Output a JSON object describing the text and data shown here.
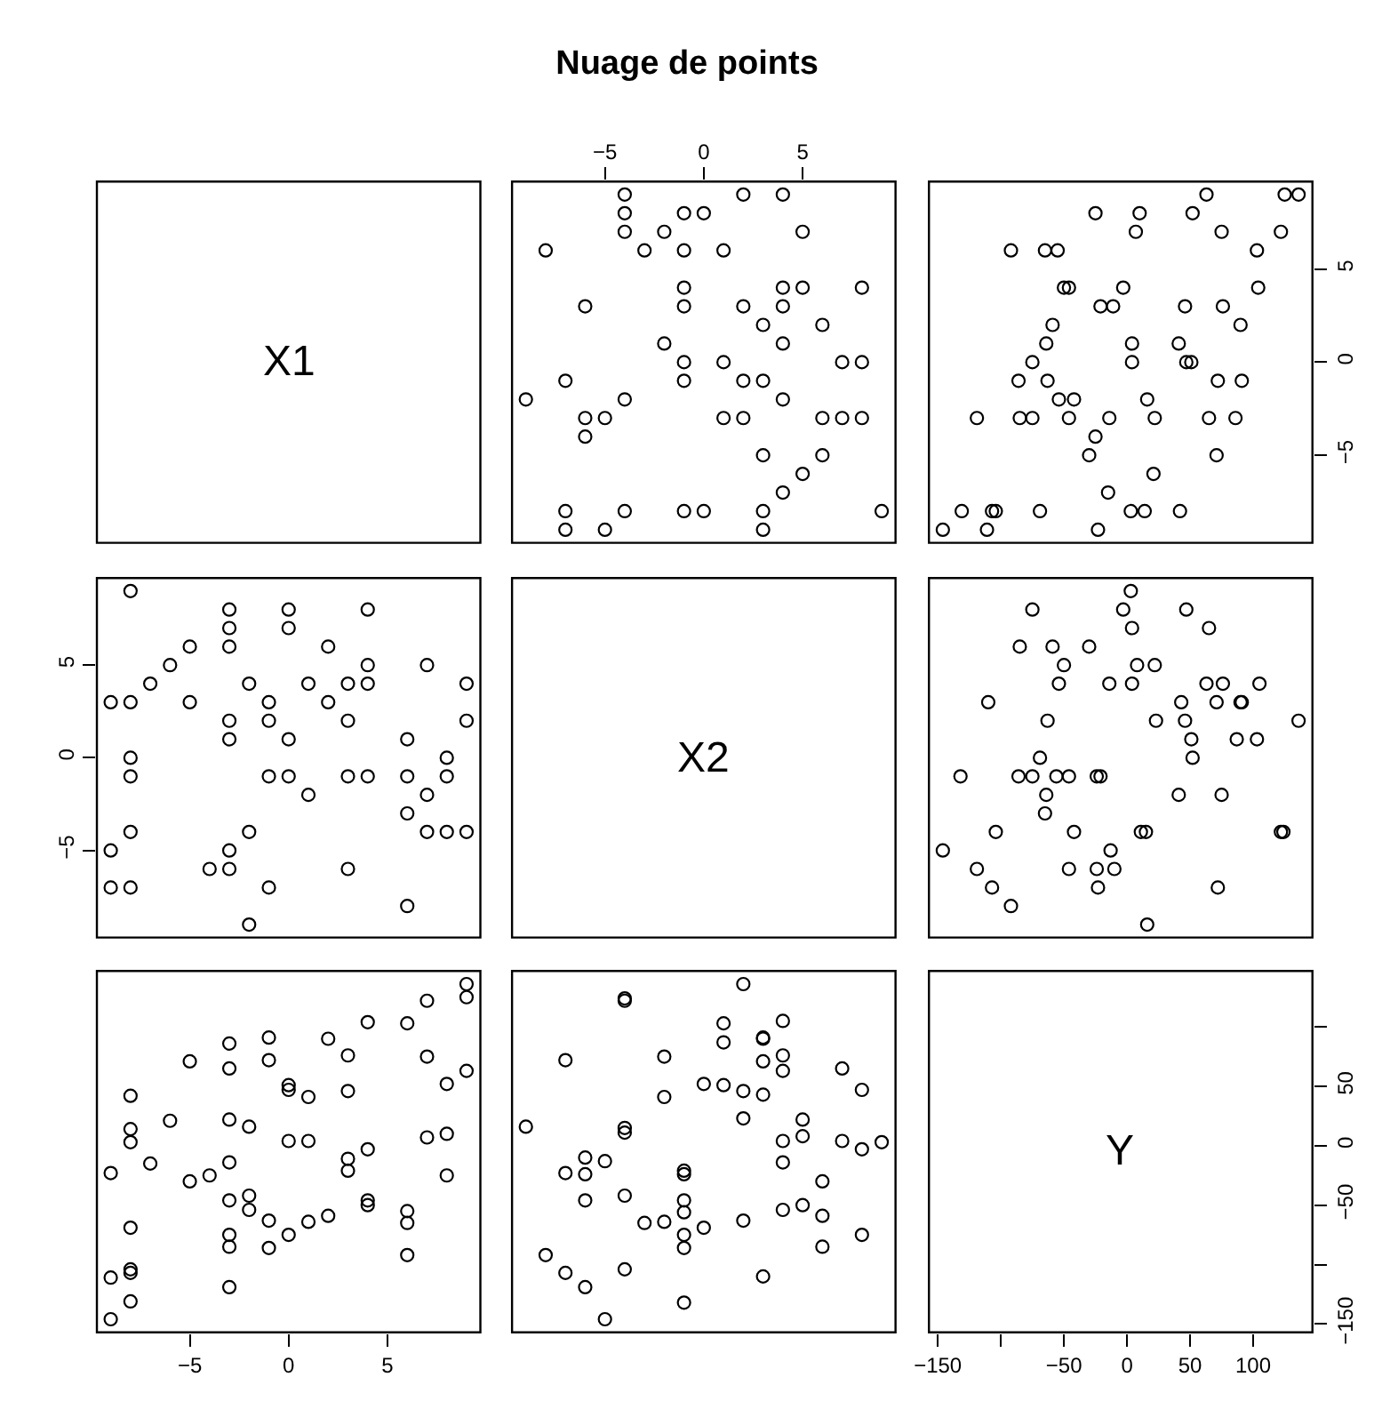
{
  "chart_data": [
    {
      "type": "other",
      "title": "Nuage de points",
      "annotations": [
        "X1"
      ]
    },
    {
      "type": "scatter",
      "marker": "circle",
      "color": "#000000",
      "tick_labels": "x",
      "x": [
        9,
        8,
        8,
        8,
        7,
        7,
        6,
        6,
        6,
        5,
        5,
        5,
        4,
        4,
        4,
        4,
        4,
        4,
        3,
        3,
        3,
        3,
        3,
        2,
        2,
        2,
        2,
        1,
        1,
        1,
        0,
        0,
        -1,
        -1,
        -1,
        -1,
        -1,
        -1,
        -1,
        -2,
        -2,
        -3,
        -4,
        -4,
        -4,
        -4,
        -4,
        -5,
        -5,
        -6,
        -6,
        -6,
        -7,
        -7,
        -7,
        -8,
        -9
      ],
      "values": [
        -8,
        -3,
        0,
        4,
        -3,
        0,
        -5,
        -3,
        2,
        -6,
        4,
        7,
        -7,
        -2,
        1,
        3,
        4,
        9,
        -9,
        -8,
        -5,
        -1,
        2,
        -3,
        -1,
        3,
        9,
        -3,
        0,
        6,
        -8,
        8,
        -8,
        -1,
        0,
        3,
        4,
        6,
        8,
        1,
        7,
        6,
        -8,
        -2,
        7,
        8,
        9,
        -9,
        -3,
        -4,
        -3,
        3,
        -9,
        -8,
        -1,
        6,
        -2
      ],
      "xlim": [
        -9.7,
        9.7
      ],
      "xticks": [
        -5,
        0,
        5
      ],
      "ylim": [
        -9.7,
        9.7
      ],
      "yticks": [
        -5,
        0,
        5
      ]
    },
    {
      "type": "scatter",
      "marker": "circle",
      "color": "#000000",
      "tick_labels": "y",
      "x": [
        136,
        125,
        122,
        104,
        103,
        91,
        90,
        86,
        76,
        75,
        71,
        72,
        65,
        63,
        52,
        51,
        47,
        41,
        46,
        42,
        21,
        22,
        16,
        14,
        3,
        4,
        4,
        7,
        10,
        -15,
        -14,
        -11,
        -21,
        -3,
        -23,
        -30,
        -25,
        -25,
        -46,
        -42,
        -54,
        -46,
        -50,
        -63,
        -64,
        -59,
        -55,
        -65,
        -69,
        -75,
        -85,
        -75,
        -86,
        -92,
        -111,
        -104,
        -107,
        -119,
        -131,
        -146
      ],
      "values": [
        9,
        9,
        7,
        4,
        6,
        -1,
        2,
        -3,
        3,
        7,
        -5,
        -1,
        -3,
        9,
        8,
        0,
        0,
        1,
        3,
        -8,
        -6,
        -3,
        -2,
        -8,
        -8,
        0,
        1,
        7,
        8,
        -7,
        -3,
        3,
        3,
        4,
        -9,
        -5,
        -4,
        8,
        -3,
        -2,
        -2,
        4,
        4,
        -1,
        1,
        2,
        6,
        6,
        -8,
        -3,
        -3,
        0,
        -1,
        6,
        -9,
        -8,
        -8,
        -3,
        -8,
        -9
      ],
      "xlim": [
        -157,
        147
      ],
      "xticks": [
        -150,
        -50,
        0,
        50,
        100
      ],
      "ylim": [
        -9.7,
        9.7
      ],
      "yticks": [
        -5,
        0,
        5
      ]
    },
    {
      "type": "scatter",
      "marker": "circle",
      "color": "#000000",
      "tick_labels": "y",
      "x": [
        -8,
        -3,
        0,
        4,
        -3,
        0,
        -5,
        -3,
        2,
        -6,
        4,
        7,
        -7,
        -2,
        1,
        3,
        4,
        9,
        -9,
        -8,
        -5,
        -1,
        2,
        -3,
        -1,
        3,
        9,
        -3,
        0,
        6,
        -8,
        8,
        -8,
        -1,
        0,
        3,
        4,
        6,
        8,
        1,
        7,
        6,
        -8,
        -2,
        7,
        8,
        9,
        -9,
        -3,
        -4,
        -3,
        3,
        -9,
        -8,
        -1,
        6,
        -2
      ],
      "values": [
        9,
        8,
        8,
        8,
        7,
        7,
        6,
        6,
        6,
        5,
        5,
        5,
        4,
        4,
        4,
        4,
        4,
        4,
        3,
        3,
        3,
        3,
        3,
        2,
        2,
        2,
        2,
        1,
        1,
        1,
        0,
        0,
        -1,
        -1,
        -1,
        -1,
        -1,
        -1,
        -1,
        -2,
        -2,
        -3,
        -4,
        -4,
        -4,
        -4,
        -4,
        -5,
        -5,
        -6,
        -6,
        -6,
        -7,
        -7,
        -7,
        -8,
        -9
      ],
      "xlim": [
        -9.7,
        9.7
      ],
      "xticks": [
        -5,
        0,
        5
      ],
      "ylim": [
        -9.7,
        9.7
      ],
      "yticks": [
        -5,
        0,
        5
      ]
    },
    {
      "type": "other",
      "annotations": [
        "X2"
      ]
    },
    {
      "type": "scatter",
      "marker": "circle",
      "color": "#000000",
      "tick_labels": false,
      "x": [
        136,
        124,
        122,
        103,
        105,
        91,
        90,
        87,
        72,
        75,
        71,
        76,
        63,
        65,
        52,
        51,
        46,
        43,
        41,
        47,
        16,
        15,
        11,
        23,
        22,
        4,
        8,
        4,
        -3,
        3,
        -10,
        -13,
        -23,
        -24,
        -21,
        -24,
        -14,
        -30,
        -46,
        -42,
        -46,
        -56,
        -65,
        -64,
        -69,
        -75,
        -86,
        -63,
        -54,
        -50,
        -59,
        -85,
        -75,
        -92,
        -107,
        -119,
        -104,
        -110,
        -132,
        -146
      ],
      "values": [
        2,
        -4,
        -4,
        1,
        4,
        3,
        3,
        1,
        -7,
        -2,
        3,
        4,
        4,
        7,
        0,
        1,
        2,
        3,
        -2,
        8,
        -9,
        -4,
        -4,
        2,
        5,
        4,
        5,
        7,
        8,
        9,
        -6,
        -5,
        -7,
        -6,
        -1,
        -1,
        4,
        6,
        -6,
        -4,
        -1,
        -1,
        -3,
        -2,
        0,
        -1,
        -1,
        2,
        4,
        5,
        6,
        6,
        8,
        -8,
        -7,
        -6,
        -4,
        3,
        -1,
        -5
      ],
      "xlim": [
        -157,
        147
      ],
      "xticks": [
        -150,
        -50,
        0,
        50,
        100
      ],
      "ylim": [
        -9.7,
        9.7
      ],
      "yticks": [
        -5,
        0,
        5
      ]
    },
    {
      "type": "scatter",
      "marker": "circle",
      "color": "#000000",
      "tick_labels": "x",
      "x": [
        9,
        9,
        7,
        4,
        6,
        -1,
        2,
        -3,
        3,
        7,
        -5,
        -1,
        -3,
        9,
        8,
        0,
        0,
        1,
        3,
        -8,
        -6,
        -3,
        -2,
        -8,
        -8,
        0,
        1,
        7,
        8,
        -7,
        -3,
        3,
        3,
        4,
        -9,
        -5,
        -4,
        8,
        -3,
        -2,
        -2,
        4,
        4,
        -1,
        1,
        2,
        6,
        6,
        -8,
        -3,
        -3,
        0,
        -1,
        6,
        -9,
        -8,
        -8,
        -3,
        -8,
        -9
      ],
      "values": [
        136,
        125,
        122,
        104,
        103,
        91,
        90,
        86,
        76,
        75,
        71,
        72,
        65,
        63,
        52,
        51,
        47,
        41,
        46,
        42,
        21,
        22,
        16,
        14,
        3,
        4,
        4,
        7,
        10,
        -15,
        -14,
        -11,
        -21,
        -3,
        -23,
        -30,
        -25,
        -25,
        -46,
        -42,
        -54,
        -46,
        -50,
        -63,
        -64,
        -59,
        -55,
        -65,
        -69,
        -75,
        -85,
        -75,
        -86,
        -92,
        -111,
        -104,
        -107,
        -119,
        -131,
        -146
      ],
      "xlim": [
        -9.7,
        9.7
      ],
      "xticks": [
        -5,
        0,
        5
      ],
      "ylim": [
        -157,
        147
      ],
      "yticks": [
        -150,
        -50,
        0,
        50
      ]
    },
    {
      "type": "scatter",
      "marker": "circle",
      "color": "#000000",
      "tick_labels": false,
      "x": [
        2,
        -4,
        -4,
        1,
        4,
        3,
        3,
        1,
        -7,
        -2,
        3,
        4,
        4,
        7,
        0,
        1,
        2,
        3,
        -2,
        8,
        -9,
        -4,
        -4,
        2,
        5,
        4,
        5,
        7,
        8,
        9,
        -6,
        -5,
        -7,
        -6,
        -1,
        -1,
        4,
        6,
        -6,
        -4,
        -1,
        -1,
        -3,
        -2,
        0,
        -1,
        -1,
        2,
        4,
        5,
        6,
        6,
        8,
        -8,
        -7,
        -6,
        -4,
        3,
        -1,
        -5
      ],
      "values": [
        136,
        124,
        122,
        103,
        105,
        91,
        90,
        87,
        72,
        75,
        71,
        76,
        63,
        65,
        52,
        51,
        46,
        43,
        41,
        47,
        16,
        15,
        11,
        23,
        22,
        4,
        8,
        4,
        -3,
        3,
        -10,
        -13,
        -23,
        -24,
        -21,
        -24,
        -14,
        -30,
        -46,
        -42,
        -46,
        -56,
        -65,
        -64,
        -69,
        -75,
        -86,
        -63,
        -54,
        -50,
        -59,
        -85,
        -75,
        -92,
        -107,
        -119,
        -104,
        -110,
        -132,
        -146
      ],
      "xlim": [
        -9.7,
        9.7
      ],
      "xticks": [
        -5,
        0,
        5
      ],
      "ylim": [
        -157,
        147
      ],
      "yticks": [
        -150,
        -50,
        0,
        50
      ]
    },
    {
      "type": "scatter",
      "annotations": [
        "Y"
      ],
      "xlim": [
        -157,
        147
      ],
      "xticks": [
        -150,
        {
          "value": -100,
          "label": null
        },
        -50,
        0,
        50,
        100
      ],
      "ylim": [
        -157,
        147
      ],
      "yticks": [
        -150,
        {
          "value": -100,
          "label": null
        },
        -50,
        0,
        50,
        {
          "value": 100,
          "label": null
        }
      ]
    }
  ]
}
